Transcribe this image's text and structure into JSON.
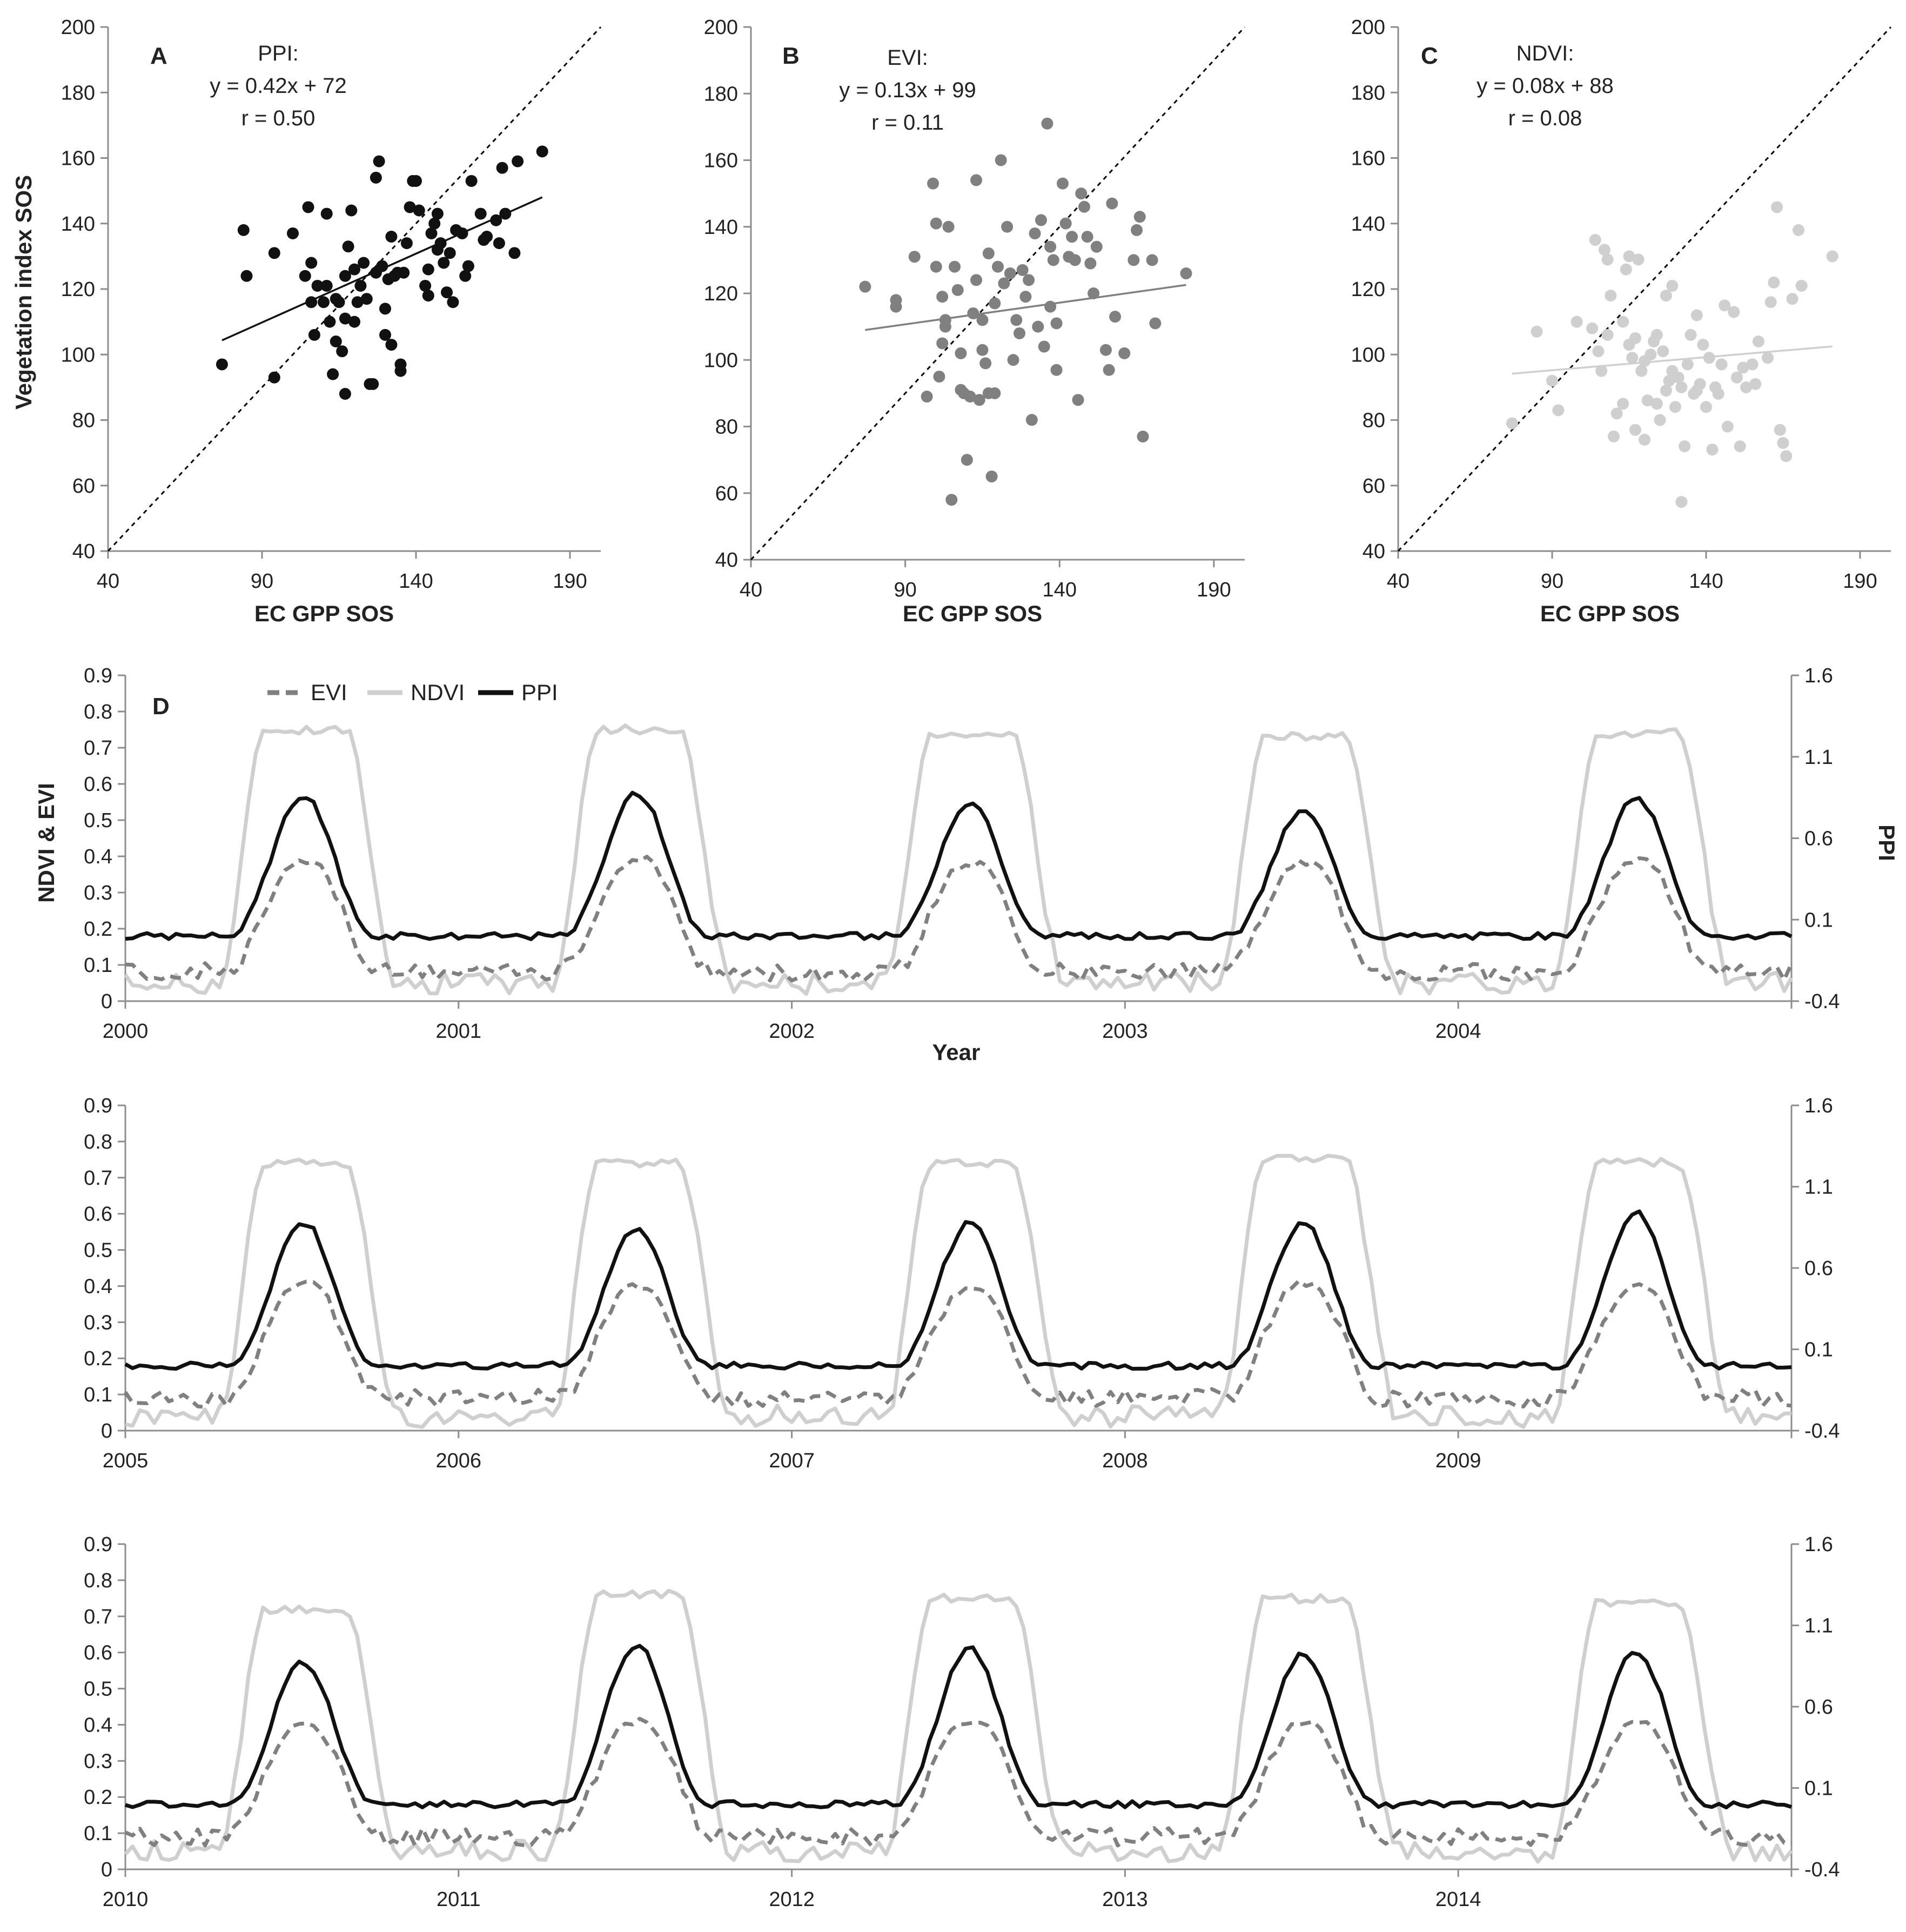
{
  "figure": {
    "scatter_x_title": "EC GPP SOS",
    "scatter_y_title": "Vegetation index SOS",
    "ts_left_title": "NDVI & EVI",
    "ts_right_title": "PPI",
    "ts_x_title": "Year"
  },
  "colors": {
    "ppi": "#111111",
    "evi": "#808080",
    "ndvi": "#cfcfcf",
    "axis": "#8c8c8c",
    "identity": "#000000"
  },
  "chart_data": [
    {
      "type": "scatter",
      "panel": "A",
      "label": "PPI:",
      "equation": "y = 0.42x + 72",
      "r_text": "r = 0.50",
      "xlabel": "EC GPP SOS",
      "ylabel": "Vegetation index SOS",
      "xlim": [
        40,
        200
      ],
      "ylim": [
        40,
        200
      ],
      "xticks": [
        40,
        90,
        140,
        190
      ],
      "yticks": [
        40,
        60,
        80,
        100,
        120,
        140,
        160,
        180,
        200
      ],
      "fit": {
        "slope": 0.42,
        "intercept": 72,
        "x_range": [
          77,
          181
        ]
      },
      "identity_line": true,
      "color": "#111111",
      "points": [
        [
          77,
          97
        ],
        [
          84,
          138
        ],
        [
          85,
          124
        ],
        [
          94,
          93
        ],
        [
          94,
          131
        ],
        [
          100,
          137
        ],
        [
          104,
          124
        ],
        [
          105,
          145
        ],
        [
          106,
          116
        ],
        [
          106,
          128
        ],
        [
          107,
          106
        ],
        [
          108,
          121
        ],
        [
          110,
          116
        ],
        [
          111,
          121
        ],
        [
          111,
          143
        ],
        [
          112,
          110
        ],
        [
          113,
          94
        ],
        [
          114,
          104
        ],
        [
          114,
          117
        ],
        [
          115,
          116
        ],
        [
          116,
          101
        ],
        [
          117,
          88
        ],
        [
          117,
          111
        ],
        [
          117,
          124
        ],
        [
          118,
          133
        ],
        [
          119,
          144
        ],
        [
          120,
          126
        ],
        [
          120,
          110
        ],
        [
          121,
          116
        ],
        [
          122,
          121
        ],
        [
          123,
          128
        ],
        [
          124,
          117
        ],
        [
          125,
          91
        ],
        [
          126,
          91
        ],
        [
          127,
          125
        ],
        [
          127,
          154
        ],
        [
          128,
          159
        ],
        [
          129,
          127
        ],
        [
          130,
          106
        ],
        [
          130,
          114
        ],
        [
          131,
          123
        ],
        [
          132,
          103
        ],
        [
          132,
          136
        ],
        [
          133,
          124
        ],
        [
          134,
          125
        ],
        [
          135,
          95
        ],
        [
          135,
          97
        ],
        [
          136,
          125
        ],
        [
          137,
          134
        ],
        [
          138,
          145
        ],
        [
          139,
          153
        ],
        [
          140,
          153
        ],
        [
          141,
          144
        ],
        [
          143,
          121
        ],
        [
          144,
          118
        ],
        [
          144,
          126
        ],
        [
          145,
          137
        ],
        [
          146,
          140
        ],
        [
          147,
          143
        ],
        [
          147,
          132
        ],
        [
          148,
          134
        ],
        [
          149,
          128
        ],
        [
          150,
          119
        ],
        [
          151,
          131
        ],
        [
          152,
          116
        ],
        [
          153,
          138
        ],
        [
          155,
          137
        ],
        [
          156,
          124
        ],
        [
          157,
          127
        ],
        [
          158,
          153
        ],
        [
          161,
          143
        ],
        [
          162,
          135
        ],
        [
          163,
          136
        ],
        [
          166,
          141
        ],
        [
          167,
          134
        ],
        [
          168,
          157
        ],
        [
          169,
          143
        ],
        [
          172,
          131
        ],
        [
          173,
          159
        ],
        [
          181,
          162
        ]
      ]
    },
    {
      "type": "scatter",
      "panel": "B",
      "label": "EVI:",
      "equation": "y = 0.13x + 99",
      "r_text": "r = 0.11",
      "xlabel": "EC GPP SOS",
      "ylabel": "",
      "xlim": [
        40,
        200
      ],
      "ylim": [
        40,
        200
      ],
      "xticks": [
        40,
        90,
        140,
        190
      ],
      "yticks": [
        40,
        60,
        80,
        100,
        120,
        140,
        160,
        180,
        200
      ],
      "fit": {
        "slope": 0.13,
        "intercept": 99,
        "x_range": [
          77,
          181
        ]
      },
      "identity_line": true,
      "color": "#808080",
      "points": [
        [
          77,
          122
        ],
        [
          87,
          118
        ],
        [
          87,
          116
        ],
        [
          93,
          131
        ],
        [
          97,
          89
        ],
        [
          99,
          153
        ],
        [
          100,
          141
        ],
        [
          100,
          128
        ],
        [
          101,
          95
        ],
        [
          102,
          105
        ],
        [
          102,
          119
        ],
        [
          103,
          112
        ],
        [
          103,
          110
        ],
        [
          104,
          140
        ],
        [
          105,
          58
        ],
        [
          106,
          128
        ],
        [
          107,
          121
        ],
        [
          108,
          102
        ],
        [
          108,
          91
        ],
        [
          109,
          90
        ],
        [
          110,
          70
        ],
        [
          111,
          89
        ],
        [
          112,
          114
        ],
        [
          113,
          154
        ],
        [
          113,
          124
        ],
        [
          114,
          88
        ],
        [
          115,
          103
        ],
        [
          115,
          112
        ],
        [
          116,
          99
        ],
        [
          117,
          90
        ],
        [
          117,
          132
        ],
        [
          118,
          65
        ],
        [
          119,
          117
        ],
        [
          119,
          90
        ],
        [
          120,
          128
        ],
        [
          121,
          160
        ],
        [
          122,
          123
        ],
        [
          123,
          140
        ],
        [
          124,
          126
        ],
        [
          125,
          100
        ],
        [
          126,
          112
        ],
        [
          127,
          108
        ],
        [
          128,
          127
        ],
        [
          129,
          119
        ],
        [
          130,
          124
        ],
        [
          131,
          82
        ],
        [
          132,
          138
        ],
        [
          133,
          110
        ],
        [
          134,
          142
        ],
        [
          135,
          104
        ],
        [
          136,
          171
        ],
        [
          137,
          116
        ],
        [
          137,
          134
        ],
        [
          138,
          130
        ],
        [
          139,
          97
        ],
        [
          139,
          111
        ],
        [
          141,
          153
        ],
        [
          142,
          141
        ],
        [
          143,
          131
        ],
        [
          144,
          137
        ],
        [
          145,
          130
        ],
        [
          146,
          88
        ],
        [
          147,
          150
        ],
        [
          148,
          146
        ],
        [
          149,
          137
        ],
        [
          150,
          129
        ],
        [
          151,
          120
        ],
        [
          152,
          134
        ],
        [
          155,
          103
        ],
        [
          156,
          97
        ],
        [
          157,
          147
        ],
        [
          158,
          113
        ],
        [
          161,
          102
        ],
        [
          164,
          130
        ],
        [
          165,
          139
        ],
        [
          166,
          143
        ],
        [
          167,
          77
        ],
        [
          170,
          130
        ],
        [
          171,
          111
        ],
        [
          181,
          126
        ]
      ]
    },
    {
      "type": "scatter",
      "panel": "C",
      "label": "NDVI:",
      "equation": "y = 0.08x + 88",
      "r_text": "r  = 0.08",
      "xlabel": "EC GPP SOS",
      "ylabel": "",
      "xlim": [
        40,
        200
      ],
      "ylim": [
        40,
        200
      ],
      "xticks": [
        40,
        90,
        140,
        190
      ],
      "yticks": [
        40,
        60,
        80,
        100,
        120,
        140,
        160,
        180,
        200
      ],
      "fit": {
        "slope": 0.08,
        "intercept": 88,
        "x_range": [
          77,
          181
        ]
      },
      "identity_line": true,
      "color": "#cfcfcf",
      "points": [
        [
          77,
          79
        ],
        [
          85,
          107
        ],
        [
          90,
          92
        ],
        [
          92,
          83
        ],
        [
          98,
          110
        ],
        [
          103,
          108
        ],
        [
          104,
          135
        ],
        [
          105,
          101
        ],
        [
          106,
          95
        ],
        [
          107,
          132
        ],
        [
          108,
          129
        ],
        [
          108,
          106
        ],
        [
          109,
          118
        ],
        [
          110,
          75
        ],
        [
          111,
          82
        ],
        [
          113,
          85
        ],
        [
          113,
          110
        ],
        [
          114,
          126
        ],
        [
          115,
          103
        ],
        [
          115,
          130
        ],
        [
          116,
          99
        ],
        [
          117,
          77
        ],
        [
          117,
          105
        ],
        [
          118,
          129
        ],
        [
          119,
          95
        ],
        [
          120,
          98
        ],
        [
          120,
          74
        ],
        [
          121,
          86
        ],
        [
          122,
          100
        ],
        [
          123,
          104
        ],
        [
          124,
          106
        ],
        [
          124,
          85
        ],
        [
          125,
          80
        ],
        [
          126,
          101
        ],
        [
          127,
          118
        ],
        [
          127,
          89
        ],
        [
          128,
          92
        ],
        [
          129,
          121
        ],
        [
          129,
          95
        ],
        [
          130,
          84
        ],
        [
          131,
          93
        ],
        [
          132,
          55
        ],
        [
          132,
          90
        ],
        [
          133,
          72
        ],
        [
          134,
          97
        ],
        [
          135,
          106
        ],
        [
          136,
          88
        ],
        [
          137,
          89
        ],
        [
          137,
          112
        ],
        [
          138,
          91
        ],
        [
          139,
          103
        ],
        [
          140,
          84
        ],
        [
          141,
          99
        ],
        [
          142,
          71
        ],
        [
          143,
          90
        ],
        [
          144,
          88
        ],
        [
          145,
          97
        ],
        [
          146,
          115
        ],
        [
          147,
          78
        ],
        [
          149,
          113
        ],
        [
          150,
          93
        ],
        [
          151,
          72
        ],
        [
          152,
          96
        ],
        [
          153,
          90
        ],
        [
          155,
          97
        ],
        [
          156,
          91
        ],
        [
          157,
          104
        ],
        [
          160,
          99
        ],
        [
          161,
          116
        ],
        [
          162,
          122
        ],
        [
          163,
          145
        ],
        [
          164,
          77
        ],
        [
          165,
          73
        ],
        [
          166,
          69
        ],
        [
          168,
          117
        ],
        [
          170,
          138
        ],
        [
          171,
          121
        ],
        [
          181,
          130
        ]
      ]
    },
    {
      "type": "line",
      "panel": "D",
      "years": [
        "2000",
        "2001",
        "2002",
        "2003",
        "2004"
      ],
      "xlabel": "Year",
      "left_ylabel": "NDVI & EVI",
      "right_ylabel": "PPI",
      "left_ylim": [
        0,
        0.9
      ],
      "right_ylim": [
        -0.4,
        1.6
      ],
      "left_ticks": [
        "0",
        "0.1",
        "0.2",
        "0.3",
        "0.4",
        "0.5",
        "0.6",
        "0.7",
        "0.8",
        "0.9"
      ],
      "right_ticks": [
        "-0.4",
        "0.1",
        "0.6",
        "1.1",
        "1.6"
      ],
      "legend": [
        "EVI",
        "NDVI",
        "PPI"
      ],
      "legend_position": "top-left",
      "ndvi_peaks": [
        0.75,
        0.75,
        0.74,
        0.73,
        0.74
      ],
      "evi_peaks": [
        0.38,
        0.39,
        0.38,
        0.38,
        0.39
      ],
      "ppi_peaks": [
        0.85,
        0.87,
        0.82,
        0.76,
        0.84
      ],
      "ppi_baseline": 0.0,
      "ndvi_baseline": 0.05,
      "evi_baseline": 0.08
    },
    {
      "type": "line",
      "panel": "",
      "years": [
        "2005",
        "2006",
        "2007",
        "2008",
        "2009"
      ],
      "xlabel": "",
      "left_ylabel": "",
      "right_ylabel": "",
      "left_ylim": [
        0,
        0.9
      ],
      "right_ylim": [
        -0.4,
        1.6
      ],
      "left_ticks": [
        "0",
        "0.1",
        "0.2",
        "0.3",
        "0.4",
        "0.5",
        "0.6",
        "0.7",
        "0.8",
        "0.9"
      ],
      "right_ticks": [
        "-0.4",
        "0.1",
        "0.6",
        "1.1",
        "1.6"
      ],
      "ndvi_peaks": [
        0.74,
        0.74,
        0.74,
        0.75,
        0.74
      ],
      "evi_peaks": [
        0.41,
        0.4,
        0.39,
        0.41,
        0.4
      ],
      "ppi_peaks": [
        0.87,
        0.83,
        0.87,
        0.87,
        0.93
      ],
      "ppi_baseline": 0.0,
      "ndvi_baseline": 0.04,
      "evi_baseline": 0.09
    },
    {
      "type": "line",
      "panel": "",
      "years": [
        "2010",
        "2011",
        "2012",
        "2013",
        "2014"
      ],
      "xlabel": "",
      "left_ylabel": "",
      "right_ylabel": "",
      "left_ylim": [
        0,
        0.9
      ],
      "right_ylim": [
        -0.4,
        1.6
      ],
      "left_ticks": [
        "0",
        "0.1",
        "0.2",
        "0.3",
        "0.4",
        "0.5",
        "0.6",
        "0.7",
        "0.8",
        "0.9"
      ],
      "right_ticks": [
        "-0.4",
        "0.1",
        "0.6",
        "1.1",
        "1.6"
      ],
      "ndvi_peaks": [
        0.72,
        0.76,
        0.75,
        0.75,
        0.74
      ],
      "evi_peaks": [
        0.4,
        0.41,
        0.41,
        0.4,
        0.4
      ],
      "ppi_peaks": [
        0.87,
        0.98,
        0.95,
        0.92,
        0.93
      ],
      "ppi_baseline": 0.0,
      "ndvi_baseline": 0.05,
      "evi_baseline": 0.09
    }
  ]
}
